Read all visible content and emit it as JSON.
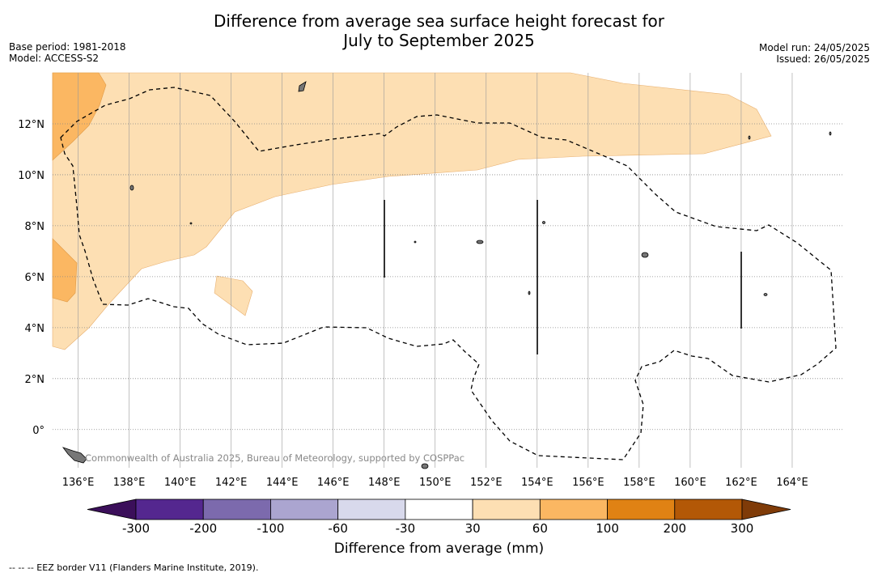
{
  "title_line1": "Difference from average sea surface height forecast for",
  "title_line2": "July to September 2025",
  "meta_left": {
    "base_period": "Base period: 1981-2018",
    "model": "Model: ACCESS-S2"
  },
  "meta_right": {
    "model_run": "Model run: 24/05/2025",
    "issued": "Issued: 26/05/2025"
  },
  "map": {
    "lon_range": [
      135,
      166
    ],
    "lat_range": [
      -1.5,
      14
    ],
    "lon_ticks": [
      "136°E",
      "138°E",
      "140°E",
      "142°E",
      "144°E",
      "146°E",
      "148°E",
      "150°E",
      "152°E",
      "154°E",
      "156°E",
      "158°E",
      "160°E",
      "162°E",
      "164°E"
    ],
    "lat_ticks": [
      "0°",
      "2°N",
      "4°N",
      "6°N",
      "8°N",
      "10°N",
      "12°N"
    ],
    "copyright": "Commonwealth of Australia 2025, Bureau of Meteorology, supported by COSPPac"
  },
  "colorbar": {
    "title": "Difference from average (mm)",
    "labels": [
      "-300",
      "-200",
      "-100",
      "-60",
      "-30",
      "30",
      "60",
      "100",
      "200",
      "300"
    ],
    "colors": [
      "#3b0f5a",
      "#54278f",
      "#7c6aad",
      "#aba5d0",
      "#d8d9ec",
      "#ffffff",
      "#fddfb3",
      "#fbb762",
      "#e08214",
      "#b35806",
      "#7f3b08"
    ]
  },
  "footnote": "-- -- -- EEZ border V11 (Flanders Marine Institute, 2019)."
}
